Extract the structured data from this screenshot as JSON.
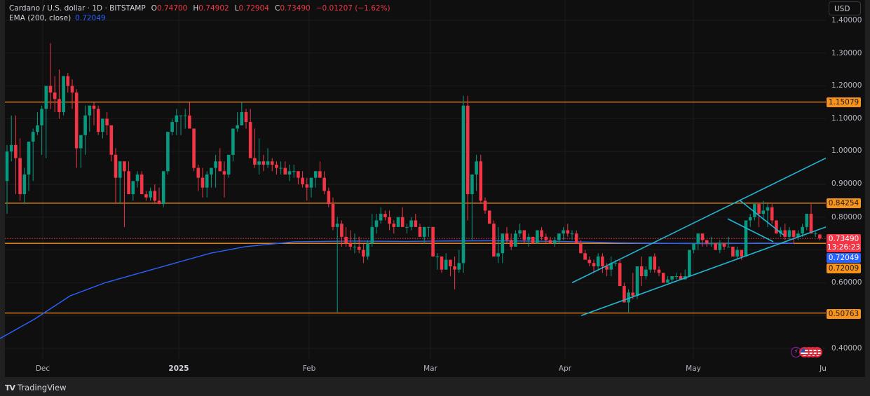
{
  "header": {
    "symbol_title": "Cardano / U.S. dollar · 1D · BITSTAMP",
    "open_label": "O",
    "open": "0.74700",
    "high_label": "H",
    "high": "0.74902",
    "low_label": "L",
    "low": "0.72904",
    "close_label": "C",
    "close": "0.73490",
    "change": "−0.01207 (−1.62%)",
    "indicator_label": "EMA (200, close)",
    "indicator_value": "0.72049"
  },
  "currency_button": "USD",
  "price_axis": {
    "ticks": [
      "1.40000",
      "1.30000",
      "1.20000",
      "1.10000",
      "1.00000",
      "0.90000",
      "0.80000",
      "0.60000",
      "0.40000"
    ],
    "labels": {
      "level_1": "1.15079",
      "level_2": "0.84254",
      "last_price": "0.73490",
      "countdown": "13:26:23",
      "ema": "0.72049",
      "level_3": "0.72009",
      "level_4": "0.50763"
    }
  },
  "time_axis": {
    "ticks": [
      "Dec",
      "2025",
      "Feb",
      "Mar",
      "Apr",
      "May",
      "Ju"
    ]
  },
  "branding": {
    "logo_text": "TradingView",
    "logo_mark": "TV"
  },
  "colors": {
    "up": "#089981",
    "down": "#f23645",
    "ema": "#2962ff",
    "horizontal_levels": "#f7931a",
    "trendlines": "#22b5d4",
    "background": "#0f0f0f",
    "grid": "#1c1c1c"
  },
  "chart_data": {
    "type": "candlestick",
    "title": "Cardano / U.S. dollar · 1D · BITSTAMP",
    "xlabel": "",
    "ylabel": "USD",
    "ylim": [
      0.38,
      1.42
    ],
    "x_range": [
      "2024-11-23",
      "2025-05-23"
    ],
    "grid": true,
    "horizontal_levels": [
      1.15079,
      0.84254,
      0.72009,
      0.50763
    ],
    "last_price": 0.7349,
    "ema200_last": 0.72049,
    "ema200_points": [
      [
        0,
        0.43
      ],
      [
        50,
        0.49
      ],
      [
        100,
        0.56
      ],
      [
        150,
        0.6
      ],
      [
        200,
        0.63
      ],
      [
        250,
        0.66
      ],
      [
        300,
        0.69
      ],
      [
        350,
        0.71
      ],
      [
        420,
        0.725
      ],
      [
        500,
        0.727
      ],
      [
        580,
        0.726
      ],
      [
        620,
        0.727
      ],
      [
        700,
        0.728
      ],
      [
        800,
        0.726
      ],
      [
        880,
        0.722
      ],
      [
        960,
        0.72
      ],
      [
        1030,
        0.719
      ],
      [
        1080,
        0.721
      ],
      [
        1133,
        0.7205
      ]
    ],
    "trendlines": [
      {
        "name": "channel-upper",
        "from": [
          816,
          0.6
        ],
        "to": [
          1178,
          0.98
        ]
      },
      {
        "name": "channel-lower",
        "from": [
          829,
          0.5
        ],
        "to": [
          1178,
          0.77
        ]
      },
      {
        "name": "flag-upper",
        "from": [
          1056,
          0.85
        ],
        "to": [
          1118,
          0.745
        ]
      },
      {
        "name": "flag-lower",
        "from": [
          1038,
          0.795
        ],
        "to": [
          1103,
          0.725
        ]
      }
    ],
    "candles": [
      [
        0.91,
        1.02,
        0.81,
        1.0
      ],
      [
        1.0,
        1.11,
        0.97,
        1.02
      ],
      [
        1.02,
        1.11,
        0.87,
        0.98
      ],
      [
        0.98,
        1.04,
        0.85,
        0.87
      ],
      [
        0.87,
        0.95,
        0.84,
        0.93
      ],
      [
        0.93,
        1.03,
        0.88,
        1.03
      ],
      [
        1.03,
        1.07,
        0.91,
        1.06
      ],
      [
        1.06,
        1.12,
        1.05,
        1.08
      ],
      [
        1.08,
        1.14,
        0.99,
        1.13
      ],
      [
        1.13,
        1.18,
        0.98,
        1.2
      ],
      [
        1.2,
        1.33,
        1.13,
        1.18
      ],
      [
        1.18,
        1.23,
        1.12,
        1.16
      ],
      [
        1.16,
        1.25,
        1.1,
        1.12
      ],
      [
        1.12,
        1.23,
        1.11,
        1.23
      ],
      [
        1.23,
        1.24,
        1.18,
        1.2
      ],
      [
        1.2,
        1.22,
        1.13,
        1.18
      ],
      [
        1.18,
        1.19,
        0.95,
        1.01
      ],
      [
        1.01,
        1.04,
        0.95,
        1.05
      ],
      [
        1.05,
        1.14,
        0.99,
        1.11
      ],
      [
        1.11,
        1.14,
        1.06,
        1.14
      ],
      [
        1.14,
        1.15,
        1.08,
        1.13
      ],
      [
        1.13,
        1.14,
        1.05,
        1.06
      ],
      [
        1.06,
        1.1,
        1.04,
        1.1
      ],
      [
        1.1,
        1.12,
        1.05,
        1.08
      ],
      [
        1.08,
        1.08,
        0.97,
        0.99
      ],
      [
        0.99,
        1.01,
        0.84,
        0.92
      ],
      [
        0.92,
        0.97,
        0.84,
        0.97
      ],
      [
        0.97,
        0.97,
        0.77,
        0.94
      ],
      [
        0.94,
        0.97,
        0.87,
        0.87
      ],
      [
        0.87,
        0.9,
        0.85,
        0.91
      ],
      [
        0.91,
        0.94,
        0.89,
        0.93
      ],
      [
        0.93,
        0.94,
        0.88,
        0.87
      ],
      [
        0.87,
        0.88,
        0.85,
        0.86
      ],
      [
        0.86,
        0.89,
        0.85,
        0.88
      ],
      [
        0.88,
        0.9,
        0.84,
        0.85
      ],
      [
        0.85,
        0.89,
        0.84,
        0.84
      ],
      [
        0.84,
        0.94,
        0.83,
        0.94
      ],
      [
        0.94,
        1.05,
        0.93,
        1.06
      ],
      [
        1.06,
        1.1,
        1.05,
        1.09
      ],
      [
        1.09,
        1.13,
        1.05,
        1.11
      ],
      [
        1.11,
        1.11,
        1.05,
        1.11
      ],
      [
        1.11,
        1.13,
        1.07,
        1.11
      ],
      [
        1.11,
        1.15,
        1.09,
        1.07
      ],
      [
        1.07,
        1.07,
        0.94,
        0.95
      ],
      [
        0.95,
        0.96,
        0.88,
        0.92
      ],
      [
        0.92,
        0.95,
        0.86,
        0.89
      ],
      [
        0.89,
        0.94,
        0.86,
        0.93
      ],
      [
        0.93,
        0.95,
        0.89,
        0.95
      ],
      [
        0.95,
        0.99,
        0.89,
        0.97
      ],
      [
        0.97,
        1.01,
        0.94,
        0.94
      ],
      [
        0.94,
        0.97,
        0.86,
        0.93
      ],
      [
        0.93,
        0.98,
        0.92,
        0.99
      ],
      [
        0.99,
        1.05,
        0.97,
        1.07
      ],
      [
        1.07,
        1.12,
        1.06,
        1.08
      ],
      [
        1.08,
        1.15,
        1.08,
        1.12
      ],
      [
        1.12,
        1.13,
        1.07,
        1.09
      ],
      [
        1.09,
        1.13,
        1.0,
        0.98
      ],
      [
        0.98,
        1.07,
        0.95,
        0.96
      ],
      [
        0.96,
        1.04,
        0.93,
        0.97
      ],
      [
        0.97,
        0.99,
        0.94,
        0.96
      ],
      [
        0.96,
        1.01,
        0.95,
        0.97
      ],
      [
        0.97,
        0.98,
        0.94,
        0.96
      ],
      [
        0.96,
        0.97,
        0.93,
        0.95
      ],
      [
        0.95,
        0.97,
        0.93,
        0.95
      ],
      [
        0.95,
        0.97,
        0.93,
        0.93
      ],
      [
        0.93,
        0.96,
        0.91,
        0.94
      ],
      [
        0.94,
        0.96,
        0.92,
        0.94
      ],
      [
        0.94,
        0.94,
        0.9,
        0.92
      ],
      [
        0.92,
        0.94,
        0.89,
        0.9
      ],
      [
        0.9,
        0.92,
        0.85,
        0.89
      ],
      [
        0.89,
        0.91,
        0.86,
        0.92
      ],
      [
        0.92,
        0.94,
        0.89,
        0.94
      ],
      [
        0.94,
        0.97,
        0.92,
        0.92
      ],
      [
        0.92,
        0.94,
        0.87,
        0.88
      ],
      [
        0.88,
        0.89,
        0.83,
        0.84
      ],
      [
        0.84,
        0.86,
        0.76,
        0.77
      ],
      [
        0.77,
        0.8,
        0.51,
        0.78
      ],
      [
        0.78,
        0.79,
        0.71,
        0.74
      ],
      [
        0.74,
        0.77,
        0.71,
        0.72
      ],
      [
        0.72,
        0.76,
        0.7,
        0.71
      ],
      [
        0.71,
        0.75,
        0.69,
        0.71
      ],
      [
        0.71,
        0.74,
        0.69,
        0.7
      ],
      [
        0.7,
        0.72,
        0.66,
        0.68
      ],
      [
        0.68,
        0.73,
        0.67,
        0.72
      ],
      [
        0.72,
        0.81,
        0.71,
        0.77
      ],
      [
        0.77,
        0.81,
        0.75,
        0.79
      ],
      [
        0.79,
        0.83,
        0.78,
        0.81
      ],
      [
        0.81,
        0.82,
        0.79,
        0.8
      ],
      [
        0.8,
        0.82,
        0.76,
        0.78
      ],
      [
        0.78,
        0.79,
        0.75,
        0.77
      ],
      [
        0.77,
        0.8,
        0.77,
        0.8
      ],
      [
        0.8,
        0.83,
        0.77,
        0.77
      ],
      [
        0.77,
        0.78,
        0.75,
        0.77
      ],
      [
        0.77,
        0.8,
        0.76,
        0.79
      ],
      [
        0.79,
        0.81,
        0.77,
        0.77
      ],
      [
        0.77,
        0.78,
        0.75,
        0.74
      ],
      [
        0.74,
        0.76,
        0.72,
        0.77
      ],
      [
        0.77,
        0.77,
        0.74,
        0.77
      ],
      [
        0.77,
        0.77,
        0.68,
        0.68
      ],
      [
        0.68,
        0.69,
        0.64,
        0.68
      ],
      [
        0.68,
        0.68,
        0.63,
        0.64
      ],
      [
        0.64,
        0.69,
        0.64,
        0.67
      ],
      [
        0.67,
        0.67,
        0.62,
        0.65
      ],
      [
        0.65,
        0.68,
        0.58,
        0.64
      ],
      [
        0.64,
        0.7,
        0.63,
        0.66
      ],
      [
        0.66,
        1.17,
        0.63,
        1.14
      ],
      [
        1.14,
        1.17,
        0.79,
        0.87
      ],
      [
        0.87,
        0.93,
        0.73,
        0.93
      ],
      [
        0.93,
        0.99,
        0.88,
        0.97
      ],
      [
        0.97,
        0.99,
        0.84,
        0.85
      ],
      [
        0.85,
        0.86,
        0.81,
        0.82
      ],
      [
        0.82,
        0.82,
        0.79,
        0.78
      ],
      [
        0.78,
        0.79,
        0.76,
        0.68
      ],
      [
        0.68,
        0.77,
        0.66,
        0.69
      ],
      [
        0.69,
        0.74,
        0.66,
        0.75
      ],
      [
        0.75,
        0.77,
        0.72,
        0.73
      ],
      [
        0.73,
        0.75,
        0.7,
        0.71
      ],
      [
        0.71,
        0.76,
        0.71,
        0.75
      ],
      [
        0.75,
        0.78,
        0.74,
        0.76
      ],
      [
        0.76,
        0.76,
        0.72,
        0.73
      ],
      [
        0.73,
        0.75,
        0.71,
        0.74
      ],
      [
        0.74,
        0.74,
        0.72,
        0.72
      ],
      [
        0.72,
        0.75,
        0.72,
        0.76
      ],
      [
        0.76,
        0.77,
        0.73,
        0.74
      ],
      [
        0.74,
        0.75,
        0.72,
        0.73
      ],
      [
        0.73,
        0.74,
        0.72,
        0.72
      ],
      [
        0.72,
        0.74,
        0.71,
        0.73
      ],
      [
        0.73,
        0.75,
        0.72,
        0.75
      ],
      [
        0.75,
        0.77,
        0.73,
        0.76
      ],
      [
        0.76,
        0.78,
        0.74,
        0.75
      ],
      [
        0.75,
        0.76,
        0.73,
        0.75
      ],
      [
        0.75,
        0.76,
        0.72,
        0.72
      ],
      [
        0.72,
        0.73,
        0.69,
        0.69
      ],
      [
        0.69,
        0.7,
        0.67,
        0.67
      ],
      [
        0.67,
        0.68,
        0.65,
        0.66
      ],
      [
        0.66,
        0.67,
        0.63,
        0.65
      ],
      [
        0.65,
        0.69,
        0.64,
        0.68
      ],
      [
        0.68,
        0.69,
        0.63,
        0.65
      ],
      [
        0.65,
        0.66,
        0.62,
        0.64
      ],
      [
        0.64,
        0.68,
        0.62,
        0.66
      ],
      [
        0.66,
        0.67,
        0.65,
        0.66
      ],
      [
        0.66,
        0.67,
        0.6,
        0.59
      ],
      [
        0.59,
        0.6,
        0.54,
        0.54
      ],
      [
        0.54,
        0.58,
        0.51,
        0.57
      ],
      [
        0.57,
        0.63,
        0.55,
        0.56
      ],
      [
        0.56,
        0.64,
        0.55,
        0.65
      ],
      [
        0.65,
        0.68,
        0.59,
        0.62
      ],
      [
        0.62,
        0.65,
        0.61,
        0.64
      ],
      [
        0.64,
        0.68,
        0.63,
        0.68
      ],
      [
        0.68,
        0.69,
        0.63,
        0.64
      ],
      [
        0.64,
        0.65,
        0.62,
        0.63
      ],
      [
        0.63,
        0.63,
        0.6,
        0.6
      ],
      [
        0.6,
        0.62,
        0.6,
        0.61
      ],
      [
        0.61,
        0.62,
        0.6,
        0.62
      ],
      [
        0.62,
        0.63,
        0.61,
        0.62
      ],
      [
        0.62,
        0.63,
        0.61,
        0.61
      ],
      [
        0.61,
        0.64,
        0.61,
        0.62
      ],
      [
        0.62,
        0.7,
        0.62,
        0.7
      ],
      [
        0.7,
        0.72,
        0.69,
        0.72
      ],
      [
        0.72,
        0.74,
        0.7,
        0.75
      ],
      [
        0.75,
        0.75,
        0.71,
        0.73
      ],
      [
        0.73,
        0.73,
        0.71,
        0.72
      ],
      [
        0.72,
        0.74,
        0.71,
        0.72
      ],
      [
        0.72,
        0.72,
        0.7,
        0.7
      ],
      [
        0.7,
        0.73,
        0.69,
        0.72
      ],
      [
        0.72,
        0.72,
        0.7,
        0.71
      ],
      [
        0.71,
        0.74,
        0.71,
        0.71
      ],
      [
        0.71,
        0.71,
        0.68,
        0.68
      ],
      [
        0.68,
        0.71,
        0.67,
        0.7
      ],
      [
        0.7,
        0.7,
        0.67,
        0.68
      ],
      [
        0.68,
        0.79,
        0.68,
        0.79
      ],
      [
        0.79,
        0.81,
        0.77,
        0.8
      ],
      [
        0.8,
        0.84,
        0.79,
        0.84
      ],
      [
        0.84,
        0.84,
        0.77,
        0.81
      ],
      [
        0.81,
        0.85,
        0.79,
        0.82
      ],
      [
        0.82,
        0.84,
        0.77,
        0.83
      ],
      [
        0.83,
        0.84,
        0.78,
        0.79
      ],
      [
        0.79,
        0.79,
        0.75,
        0.75
      ],
      [
        0.75,
        0.77,
        0.74,
        0.76
      ],
      [
        0.76,
        0.78,
        0.73,
        0.74
      ],
      [
        0.74,
        0.77,
        0.73,
        0.76
      ],
      [
        0.76,
        0.76,
        0.72,
        0.74
      ],
      [
        0.74,
        0.76,
        0.73,
        0.75
      ],
      [
        0.75,
        0.78,
        0.74,
        0.77
      ],
      [
        0.77,
        0.81,
        0.76,
        0.81
      ],
      [
        0.81,
        0.84,
        0.75,
        0.75
      ],
      [
        0.75,
        0.76,
        0.74,
        0.75
      ],
      [
        0.747,
        0.749,
        0.729,
        0.7349
      ]
    ]
  }
}
